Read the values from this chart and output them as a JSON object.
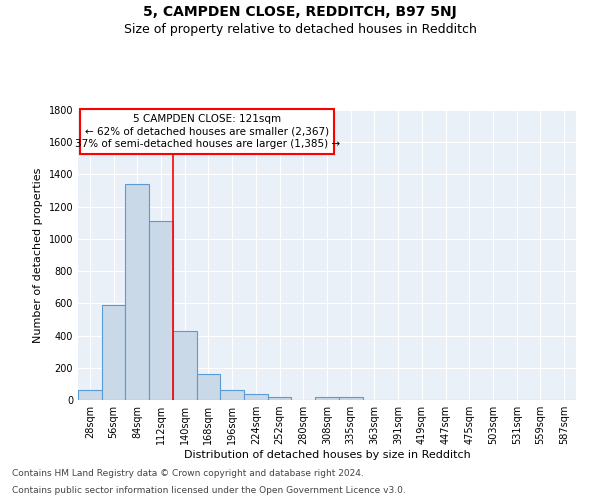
{
  "title": "5, CAMPDEN CLOSE, REDDITCH, B97 5NJ",
  "subtitle": "Size of property relative to detached houses in Redditch",
  "xlabel": "Distribution of detached houses by size in Redditch",
  "ylabel": "Number of detached properties",
  "footnote1": "Contains HM Land Registry data © Crown copyright and database right 2024.",
  "footnote2": "Contains public sector information licensed under the Open Government Licence v3.0.",
  "bar_labels": [
    "28sqm",
    "56sqm",
    "84sqm",
    "112sqm",
    "140sqm",
    "168sqm",
    "196sqm",
    "224sqm",
    "252sqm",
    "280sqm",
    "308sqm",
    "335sqm",
    "363sqm",
    "391sqm",
    "419sqm",
    "447sqm",
    "475sqm",
    "503sqm",
    "531sqm",
    "559sqm",
    "587sqm"
  ],
  "bar_values": [
    60,
    590,
    1340,
    1110,
    430,
    160,
    65,
    40,
    20,
    0,
    20,
    20,
    0,
    0,
    0,
    0,
    0,
    0,
    0,
    0,
    0
  ],
  "bar_color": "#c9d9e8",
  "bar_edge_color": "#5b9bd5",
  "ylim": [
    0,
    1800
  ],
  "yticks": [
    0,
    200,
    400,
    600,
    800,
    1000,
    1200,
    1400,
    1600,
    1800
  ],
  "red_line_x": 3.5,
  "ann_line1": "5 CAMPDEN CLOSE: 121sqm",
  "ann_line2": "← 62% of detached houses are smaller (2,367)",
  "ann_line3": "37% of semi-detached houses are larger (1,385) →",
  "background_color": "#eaf0f8",
  "grid_color": "white",
  "title_fontsize": 10,
  "subtitle_fontsize": 9,
  "axis_label_fontsize": 8,
  "tick_fontsize": 7,
  "annotation_fontsize": 7.5,
  "footnote_fontsize": 6.5
}
